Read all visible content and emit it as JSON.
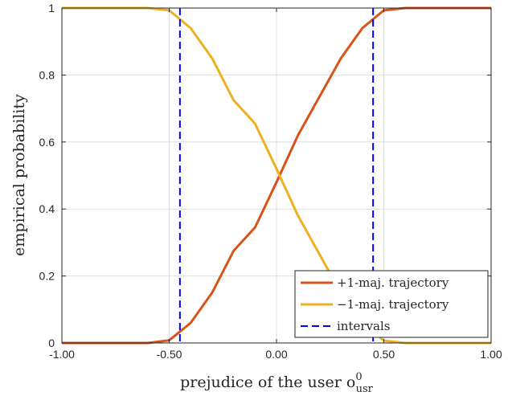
{
  "chart_data": {
    "type": "line",
    "xlabel": "prejudice of the user o",
    "xlabel_sup": "0",
    "xlabel_sub": "usr",
    "ylabel": "empirical probability",
    "xlim": [
      -1,
      1
    ],
    "ylim": [
      0,
      1
    ],
    "xticks": [
      "-1.00",
      "-0.50",
      "0.00",
      "0.50",
      "1.00"
    ],
    "xtick_values": [
      -1,
      -0.5,
      0,
      0.5,
      1
    ],
    "yticks": [
      "0",
      "0.2",
      "0.4",
      "0.6",
      "0.8",
      "1"
    ],
    "ytick_values": [
      0,
      0.2,
      0.4,
      0.6,
      0.8,
      1
    ],
    "grid": true,
    "legend_position": "bottom-right",
    "series": [
      {
        "name": "+1-maj. trajectory",
        "color": "#d95319",
        "style": "solid",
        "x": [
          -1,
          -0.9,
          -0.8,
          -0.7,
          -0.6,
          -0.5,
          -0.4,
          -0.3,
          -0.2,
          -0.1,
          0,
          0.1,
          0.2,
          0.3,
          0.4,
          0.5,
          0.6,
          0.7,
          0.8,
          0.9,
          1
        ],
        "y": [
          0,
          0,
          0,
          0,
          0,
          0.008,
          0.06,
          0.15,
          0.275,
          0.345,
          0.48,
          0.62,
          0.735,
          0.85,
          0.94,
          0.993,
          1,
          1,
          1,
          1,
          1
        ]
      },
      {
        "name": "−1-maj. trajectory",
        "color": "#edb120",
        "style": "solid",
        "x": [
          -1,
          -0.9,
          -0.8,
          -0.7,
          -0.6,
          -0.5,
          -0.4,
          -0.3,
          -0.2,
          -0.1,
          0,
          0.1,
          0.2,
          0.3,
          0.4,
          0.5,
          0.6,
          0.7,
          0.8,
          0.9,
          1
        ],
        "y": [
          1,
          1,
          1,
          1,
          1,
          0.993,
          0.94,
          0.85,
          0.725,
          0.655,
          0.52,
          0.38,
          0.265,
          0.15,
          0.06,
          0.007,
          0,
          0,
          0,
          0,
          0
        ]
      },
      {
        "name": "intervals",
        "color": "#0000ff",
        "style": "dashed",
        "vlines": [
          -0.45,
          0.45
        ]
      }
    ]
  }
}
